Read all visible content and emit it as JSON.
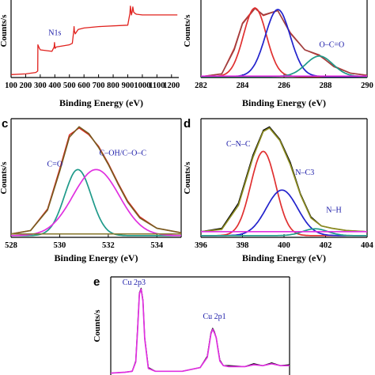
{
  "chart_data": [
    {
      "panel": "",
      "type": "line",
      "xlabel": "Binding Energy (eV)",
      "ylabel": "Counts/s",
      "xlim": [
        100,
        1250
      ],
      "ylim": [
        0,
        100
      ],
      "xticks": [
        100,
        200,
        300,
        400,
        500,
        600,
        700,
        800,
        900,
        1000,
        1100,
        1200
      ],
      "series": [
        {
          "color": "#e0201c",
          "x": [
            100,
            200,
            270,
            283,
            284,
            290,
            300,
            380,
            395,
            398,
            401,
            410,
            500,
            520,
            530,
            532,
            534,
            540,
            560,
            600,
            700,
            900,
            915,
            918,
            925,
            930,
            935,
            940,
            950,
            960,
            1000,
            1100,
            1150,
            1200,
            1240
          ],
          "y": [
            4,
            5,
            7,
            9,
            45,
            42,
            38,
            36,
            42,
            48,
            40,
            42,
            45,
            47,
            65,
            70,
            64,
            60,
            66,
            68,
            70,
            72,
            88,
            98,
            86,
            90,
            97,
            90,
            88,
            87,
            86,
            86,
            86,
            86,
            86
          ]
        }
      ],
      "annotations": [
        {
          "text": "N1s",
          "x": 400,
          "y": 58
        }
      ]
    },
    {
      "panel": "",
      "type": "line",
      "xlabel": "Binding Energy (eV)",
      "ylabel": "Counts/s",
      "xlim": [
        282,
        290
      ],
      "ylim": [
        0,
        100
      ],
      "xticks": [
        282,
        284,
        286,
        288,
        290
      ],
      "series": [
        {
          "color": "#e0201c",
          "x": [
            282.2,
            283.0,
            283.6,
            284.0,
            284.6,
            285.0,
            285.7,
            286.3,
            287.0,
            287.7,
            288.4,
            289.2,
            290.0
          ],
          "y": [
            2,
            5,
            40,
            75,
            96,
            85,
            92,
            62,
            38,
            30,
            16,
            6,
            3
          ]
        },
        {
          "color": "#a04040",
          "x": [
            282.2,
            283.0,
            283.6,
            284.0,
            284.6,
            285.0,
            285.7,
            286.3,
            287.0,
            287.7,
            288.4,
            289.2,
            290.0
          ],
          "y": [
            2,
            5,
            38,
            74,
            95,
            86,
            92,
            61,
            38,
            31,
            15,
            6,
            3
          ]
        },
        {
          "color": "#e03030",
          "peak": {
            "center": 284.6,
            "height": 94,
            "sigma": 0.55
          }
        },
        {
          "color": "#2222cc",
          "peak": {
            "center": 285.7,
            "height": 92,
            "sigma": 0.6
          }
        },
        {
          "color": "#1f9a8a",
          "peak": {
            "center": 287.7,
            "height": 28,
            "sigma": 0.65
          }
        },
        {
          "color": "#e030e0",
          "baseline": 2
        }
      ],
      "annotations": [
        {
          "text": "O–C=O",
          "x": 288.3,
          "y": 42
        }
      ]
    },
    {
      "panel": "c",
      "type": "line",
      "xlabel": "Binding Energy (eV)",
      "ylabel": "Counts/s",
      "xlim": [
        528,
        535
      ],
      "ylim": [
        0,
        100
      ],
      "xticks": [
        528,
        530,
        532,
        534
      ],
      "series": [
        {
          "color": "#e0201c",
          "x": [
            528.0,
            528.8,
            529.5,
            530.0,
            530.4,
            530.8,
            531.2,
            531.6,
            532.0,
            532.4,
            532.8,
            533.3,
            534.0,
            535.0
          ],
          "y": [
            3,
            6,
            25,
            60,
            90,
            96,
            90,
            80,
            65,
            48,
            32,
            18,
            8,
            4
          ]
        },
        {
          "color": "#7a5a20",
          "x": [
            528.0,
            528.8,
            529.5,
            530.0,
            530.4,
            530.8,
            531.2,
            531.6,
            532.0,
            532.4,
            532.8,
            533.3,
            534.0,
            535.0
          ],
          "y": [
            3,
            6,
            24,
            58,
            88,
            97,
            91,
            79,
            64,
            47,
            31,
            17,
            8,
            4
          ]
        },
        {
          "color": "#1f9a8a",
          "peak": {
            "center": 530.75,
            "height": 58,
            "sigma": 0.55
          }
        },
        {
          "color": "#e030e0",
          "peak": {
            "center": 531.5,
            "height": 58,
            "sigma": 0.95
          }
        },
        {
          "color": "#8a7a30",
          "baseline": 3
        }
      ],
      "annotations": [
        {
          "text": "C=O",
          "x": 529.8,
          "y": 62
        },
        {
          "text": "C–OH/C–O–C",
          "x": 532.6,
          "y": 72
        }
      ]
    },
    {
      "panel": "d",
      "type": "line",
      "xlabel": "Binding Energy (eV)",
      "ylabel": "Counts/s",
      "xlim": [
        396,
        404
      ],
      "ylim": [
        0,
        100
      ],
      "xticks": [
        396,
        398,
        400,
        402,
        404
      ],
      "series": [
        {
          "color": "#000000",
          "x": [
            396.0,
            397.0,
            397.8,
            398.5,
            399.0,
            399.3,
            399.8,
            400.3,
            400.8,
            401.3,
            401.8,
            402.3,
            403.0,
            404.0
          ],
          "y": [
            5,
            8,
            30,
            72,
            94,
            97,
            86,
            66,
            38,
            18,
            10,
            8,
            6,
            5
          ]
        },
        {
          "color": "#8a8a20",
          "x": [
            396.0,
            397.0,
            397.8,
            398.5,
            399.0,
            399.3,
            399.8,
            400.3,
            400.8,
            401.3,
            401.8,
            402.3,
            403.0,
            404.0
          ],
          "y": [
            5,
            7,
            28,
            70,
            93,
            96,
            85,
            64,
            37,
            17,
            10,
            8,
            6,
            5
          ]
        },
        {
          "color": "#e03030",
          "peak": {
            "center": 399.0,
            "height": 74,
            "sigma": 0.6
          }
        },
        {
          "color": "#2222cc",
          "peak": {
            "center": 399.9,
            "height": 40,
            "sigma": 0.75
          }
        },
        {
          "color": "#1f9a8a",
          "peak": {
            "center": 401.5,
            "height": 6,
            "sigma": 0.6
          }
        },
        {
          "color": "#e030e0",
          "baseline": 5
        }
      ],
      "annotations": [
        {
          "text": "C–N–C",
          "x": 397.8,
          "y": 80
        },
        {
          "text": "N–C3",
          "x": 401.0,
          "y": 55
        },
        {
          "text": "N–H",
          "x": 402.4,
          "y": 22
        }
      ]
    },
    {
      "panel": "e",
      "type": "line",
      "ylabel": "Counts/s",
      "xlim": [
        0,
        100
      ],
      "ylim": [
        0,
        100
      ],
      "series": [
        {
          "color": "#000000",
          "x": [
            0,
            8,
            12,
            14,
            15,
            16,
            17,
            18,
            19,
            21,
            25,
            40,
            50,
            54,
            56,
            57,
            58,
            59,
            60,
            61,
            63,
            66,
            75,
            80,
            85,
            90,
            95,
            100
          ],
          "y": [
            2,
            3,
            4,
            15,
            50,
            88,
            93,
            80,
            40,
            8,
            4,
            4,
            8,
            20,
            45,
            50,
            46,
            40,
            28,
            16,
            10,
            10,
            9,
            12,
            10,
            13,
            10,
            11
          ]
        },
        {
          "color": "#e030e0",
          "x": [
            0,
            8,
            12,
            14,
            15,
            16,
            17,
            18,
            19,
            21,
            25,
            40,
            50,
            54,
            56,
            57,
            58,
            59,
            60,
            61,
            63,
            66,
            75,
            80,
            85,
            90,
            95,
            100
          ],
          "y": [
            2,
            3,
            4,
            14,
            48,
            87,
            92,
            79,
            39,
            7,
            4,
            4,
            8,
            19,
            44,
            49,
            45,
            40,
            27,
            15,
            10,
            9,
            9,
            11,
            10,
            12,
            10,
            10
          ]
        }
      ],
      "annotations": [
        {
          "text": "Cu 2p3",
          "x": 13,
          "y": 110
        },
        {
          "text": "Cu 2p1",
          "x": 58,
          "y": 60
        }
      ]
    }
  ],
  "panel_labels": [
    "c",
    "d",
    "e"
  ]
}
